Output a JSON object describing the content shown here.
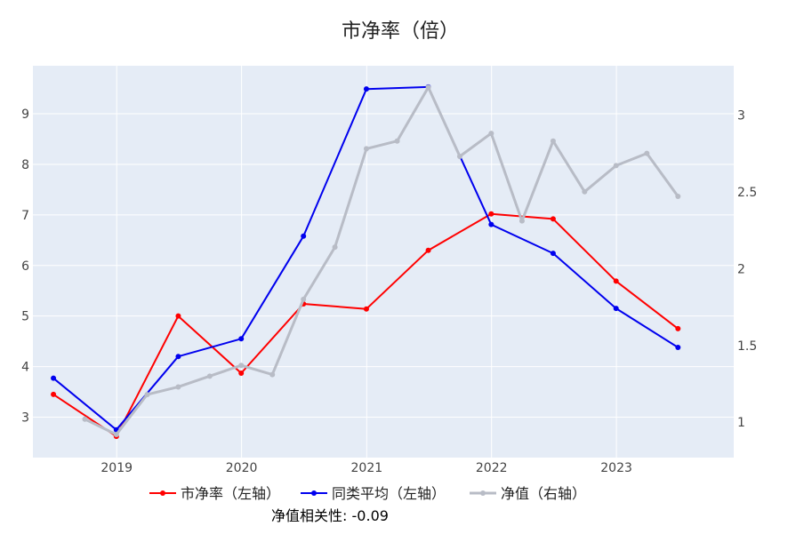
{
  "chart_data": {
    "type": "line",
    "title": "市净率（倍）",
    "x_tick_labels": [
      "2019",
      "2020",
      "2021",
      "2022",
      "2023"
    ],
    "x_range": [
      "2018-05-01",
      "2023-12-10"
    ],
    "y_left_ticks": [
      3,
      4,
      5,
      6,
      7,
      8,
      9
    ],
    "y_left_range": [
      2.2,
      9.95
    ],
    "y_right_ticks": [
      "1",
      "1.5",
      "2",
      "2.5",
      "3"
    ],
    "y_right_range": [
      0.77,
      3.32
    ],
    "grid": true,
    "legend_position": "bottom",
    "series": [
      {
        "name": "市净率（左轴）",
        "axis": "left",
        "color": "#ff0000",
        "points": [
          [
            "2018-06-30",
            3.45
          ],
          [
            "2018-12-31",
            2.62
          ],
          [
            "2019-06-30",
            5.0
          ],
          [
            "2019-12-31",
            3.87
          ],
          [
            "2020-06-30",
            5.24
          ],
          [
            "2020-12-31",
            5.14
          ],
          [
            "2021-06-30",
            6.3
          ],
          [
            "2021-12-31",
            7.02
          ],
          [
            "2022-06-30",
            6.92
          ],
          [
            "2022-12-31",
            5.69
          ],
          [
            "2023-06-30",
            4.75
          ]
        ]
      },
      {
        "name": "同类平均（左轴）",
        "axis": "left",
        "color": "#0000ee",
        "points": [
          [
            "2018-06-30",
            3.77
          ],
          [
            "2018-12-31",
            2.75
          ],
          [
            "2019-06-30",
            4.2
          ],
          [
            "2019-12-31",
            4.55
          ],
          [
            "2020-06-30",
            6.58
          ],
          [
            "2020-12-31",
            9.49
          ],
          [
            "2021-06-30",
            9.53
          ],
          [
            "2021-12-31",
            6.81
          ],
          [
            "2022-06-30",
            6.24
          ],
          [
            "2022-12-31",
            5.15
          ],
          [
            "2023-06-30",
            4.38
          ]
        ]
      },
      {
        "name": "净值（右轴）",
        "axis": "right",
        "color": "#b8bcc6",
        "points": [
          [
            "2018-09-30",
            1.02
          ],
          [
            "2018-12-31",
            0.92
          ],
          [
            "2019-03-31",
            1.18
          ],
          [
            "2019-06-30",
            1.23
          ],
          [
            "2019-09-30",
            1.3
          ],
          [
            "2019-12-31",
            1.37
          ],
          [
            "2020-03-31",
            1.31
          ],
          [
            "2020-06-30",
            1.8
          ],
          [
            "2020-09-30",
            2.14
          ],
          [
            "2020-12-31",
            2.78
          ],
          [
            "2021-03-31",
            2.83
          ],
          [
            "2021-06-30",
            3.18
          ],
          [
            "2021-09-30",
            2.73
          ],
          [
            "2021-12-31",
            2.88
          ],
          [
            "2022-03-31",
            2.31
          ],
          [
            "2022-06-30",
            2.83
          ],
          [
            "2022-09-30",
            2.5
          ],
          [
            "2022-12-31",
            2.67
          ],
          [
            "2023-03-31",
            2.75
          ],
          [
            "2023-06-30",
            2.47
          ]
        ]
      }
    ],
    "annotation": "净值相关性: -0.09"
  }
}
